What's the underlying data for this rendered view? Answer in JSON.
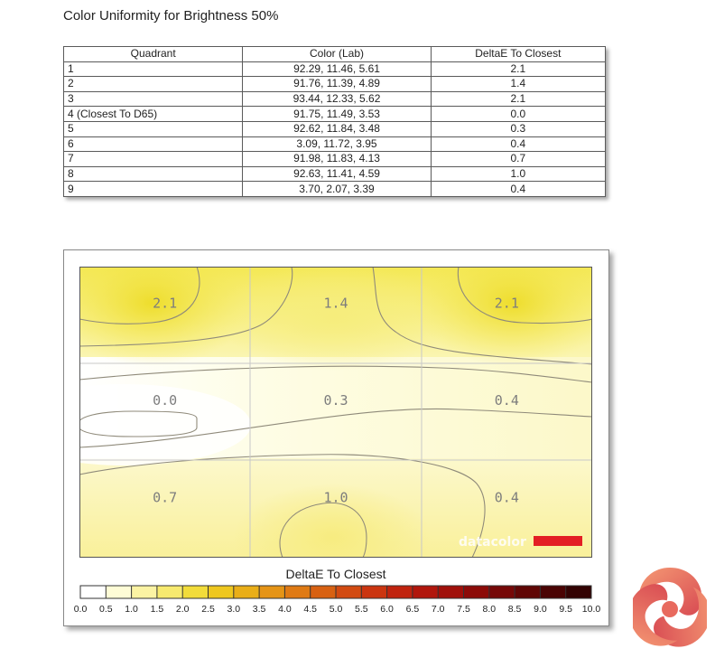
{
  "title": "Color Uniformity for Brightness 50%",
  "table": {
    "headers": [
      "Quadrant",
      "Color (Lab)",
      "DeltaE To Closest"
    ],
    "rows": [
      {
        "quadrant": "1",
        "lab": "92.29,  11.46,  5.61",
        "delta": "2.1"
      },
      {
        "quadrant": "2",
        "lab": "91.76,  11.39,  4.89",
        "delta": "1.4"
      },
      {
        "quadrant": "3",
        "lab": "93.44,  12.33,  5.62",
        "delta": "2.1"
      },
      {
        "quadrant": "4 (Closest To D65)",
        "lab": "91.75,  11.49,  3.53",
        "delta": "0.0"
      },
      {
        "quadrant": "5",
        "lab": "92.62,  11.84,  3.48",
        "delta": "0.3"
      },
      {
        "quadrant": "6",
        "lab": "3.09,  11.72,  3.95",
        "delta": "0.4"
      },
      {
        "quadrant": "7",
        "lab": "91.98,  11.83,  4.13",
        "delta": "0.7"
      },
      {
        "quadrant": "8",
        "lab": "92.63,  11.41,  4.59",
        "delta": "1.0"
      },
      {
        "quadrant": "9",
        "lab": "3.70,  2.07,  3.39",
        "delta": "0.4"
      }
    ]
  },
  "chart_data": {
    "type": "heatmap",
    "title": "",
    "grid_rows": 3,
    "grid_cols": 3,
    "values": [
      [
        2.1,
        1.4,
        2.1
      ],
      [
        0.0,
        0.3,
        0.4
      ],
      [
        0.7,
        1.0,
        0.4
      ]
    ],
    "cell_labels": [
      [
        "2.1",
        "1.4",
        "2.1"
      ],
      [
        "0.0",
        "0.3",
        "0.4"
      ],
      [
        "0.7",
        "1.0",
        "0.4"
      ]
    ],
    "colorbar_label": "DeltaE To Closest",
    "colorbar_range": [
      0,
      10
    ],
    "colorbar_ticks": [
      "0.0",
      "0.5",
      "1.0",
      "1.5",
      "2.0",
      "2.5",
      "3.0",
      "3.5",
      "4.0",
      "4.5",
      "5.0",
      "5.5",
      "6.0",
      "6.5",
      "7.0",
      "7.5",
      "8.0",
      "8.5",
      "9.0",
      "9.5",
      "10.0"
    ],
    "colorbar_colors": [
      "#ffffff",
      "#fefcd6",
      "#fbf3a3",
      "#f7ea6f",
      "#f2dc3a",
      "#eec71f",
      "#e9ae18",
      "#e59416",
      "#df7a14",
      "#d86112",
      "#d24a11",
      "#cb3510",
      "#c0230e",
      "#b1160c",
      "#a0100a",
      "#8c0b08",
      "#760807",
      "#600605",
      "#4a0404",
      "#330303"
    ],
    "watermark": "datacolor",
    "accent_red": "#e31e24"
  }
}
